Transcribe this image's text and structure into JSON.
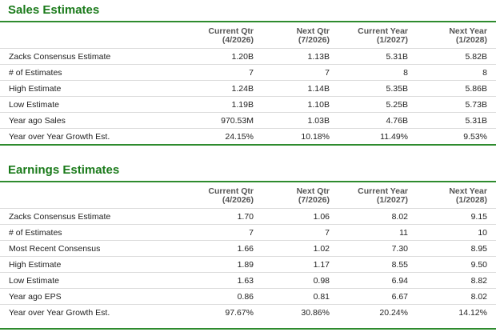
{
  "colors": {
    "accent": "#1a7a1a",
    "rule": "#2e8b2e",
    "grid": "#dcdcdc"
  },
  "columns": [
    {
      "name": "Current Qtr",
      "period": "(4/2026)"
    },
    {
      "name": "Next Qtr",
      "period": "(7/2026)"
    },
    {
      "name": "Current Year",
      "period": "(1/2027)"
    },
    {
      "name": "Next Year",
      "period": "(1/2028)"
    }
  ],
  "sales": {
    "title": "Sales Estimates",
    "rows": [
      {
        "label": "Zacks Consensus Estimate",
        "values": [
          "1.20B",
          "1.13B",
          "5.31B",
          "5.82B"
        ]
      },
      {
        "label": "# of Estimates",
        "values": [
          "7",
          "7",
          "8",
          "8"
        ]
      },
      {
        "label": "High Estimate",
        "values": [
          "1.24B",
          "1.14B",
          "5.35B",
          "5.86B"
        ]
      },
      {
        "label": "Low Estimate",
        "values": [
          "1.19B",
          "1.10B",
          "5.25B",
          "5.73B"
        ]
      },
      {
        "label": "Year ago Sales",
        "values": [
          "970.53M",
          "1.03B",
          "4.76B",
          "5.31B"
        ]
      },
      {
        "label": "Year over Year Growth Est.",
        "values": [
          "24.15%",
          "10.18%",
          "11.49%",
          "9.53%"
        ]
      }
    ]
  },
  "earnings": {
    "title": "Earnings Estimates",
    "rows": [
      {
        "label": "Zacks Consensus Estimate",
        "values": [
          "1.70",
          "1.06",
          "8.02",
          "9.15"
        ]
      },
      {
        "label": "# of Estimates",
        "values": [
          "7",
          "7",
          "11",
          "10"
        ]
      },
      {
        "label": "Most Recent Consensus",
        "values": [
          "1.66",
          "1.02",
          "7.30",
          "8.95"
        ]
      },
      {
        "label": "High Estimate",
        "values": [
          "1.89",
          "1.17",
          "8.55",
          "9.50"
        ]
      },
      {
        "label": "Low Estimate",
        "values": [
          "1.63",
          "0.98",
          "6.94",
          "8.82"
        ]
      },
      {
        "label": "Year ago EPS",
        "values": [
          "0.86",
          "0.81",
          "6.67",
          "8.02"
        ]
      },
      {
        "label": "Year over Year Growth Est.",
        "values": [
          "97.67%",
          "30.86%",
          "20.24%",
          "14.12%"
        ]
      }
    ]
  }
}
